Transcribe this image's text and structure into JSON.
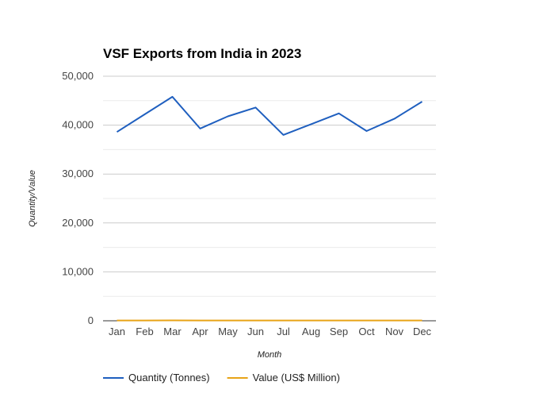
{
  "chart_data": {
    "type": "line",
    "title": "VSF Exports from India in 2023",
    "xlabel": "Month",
    "ylabel": "Quantity/Value",
    "categories": [
      "Jan",
      "Feb",
      "Mar",
      "Apr",
      "May",
      "Jun",
      "Jul",
      "Aug",
      "Sep",
      "Oct",
      "Nov",
      "Dec"
    ],
    "ylim": [
      0,
      50000
    ],
    "yticks": [
      0,
      10000,
      20000,
      30000,
      40000,
      50000
    ],
    "ytick_labels": [
      "0",
      "10,000",
      "20,000",
      "30,000",
      "40,000",
      "50,000"
    ],
    "grid": true,
    "legend_position": "bottom-left",
    "series": [
      {
        "name": "Quantity (Tonnes)",
        "color": "#1f5fbf",
        "values": [
          38600,
          42200,
          45800,
          39300,
          41800,
          43600,
          38000,
          40200,
          42400,
          38800,
          41300,
          44800
        ]
      },
      {
        "name": "Value (US$ Million)",
        "color": "#e8a317",
        "values": [
          65,
          70,
          75,
          62,
          66,
          70,
          60,
          63,
          67,
          61,
          64,
          72
        ]
      }
    ]
  }
}
